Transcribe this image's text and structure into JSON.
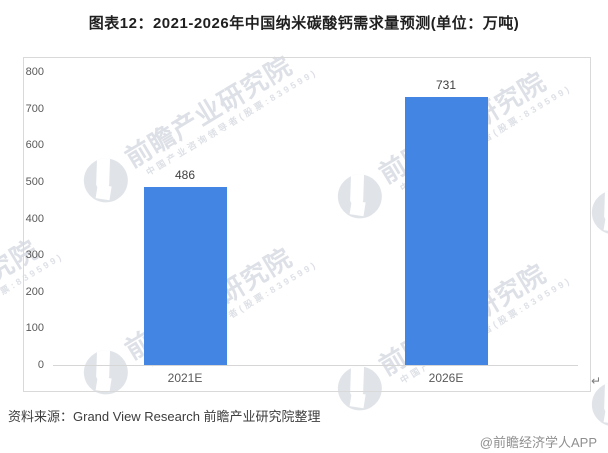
{
  "page": {
    "title": "图表12：2021-2026年中国纳米碳酸钙需求量预测(单位：万吨)"
  },
  "chart_data": {
    "type": "bar",
    "title": "图表12：2021-2026年中国纳米碳酸钙需求量预测",
    "unit_label": "单位：万吨",
    "categories": [
      "2021E",
      "2026E"
    ],
    "values": [
      486,
      731
    ],
    "data_labels": [
      "486",
      "731"
    ],
    "ylim": [
      0,
      800
    ],
    "ytick_step": 100,
    "yticks": [
      800,
      700,
      600,
      500,
      400,
      300,
      200,
      100,
      0
    ],
    "grid": false,
    "legend": "none",
    "bar_color": "#4285e3",
    "axis_label_color": "#595959",
    "axis_line_color": "#d6d6d6"
  },
  "watermark": {
    "logo_icon": "qianzhan-logo-icon",
    "text_large": "前瞻产业研究院",
    "text_small": "中国产业咨询领导者(股票:839599)",
    "color": "#c2c8d2"
  },
  "footer": {
    "source": "资料来源：Grand View Research 前瞻产业研究院整理",
    "credit": "@前瞻经济学人APP"
  },
  "misc": {
    "paragraph_mark": "↵"
  }
}
